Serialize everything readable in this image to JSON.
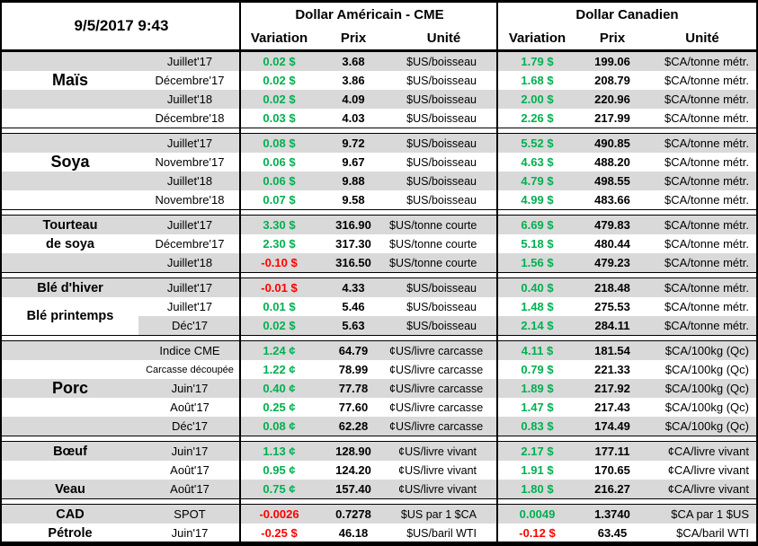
{
  "report": {
    "date": "9/5/2017 9:43",
    "us_group_title": "Dollar Américain - CME",
    "ca_group_title": "Dollar Canadien",
    "col_variation": "Variation",
    "col_price": "Prix",
    "col_unit": "Unité"
  },
  "colors": {
    "positive": "#00B050",
    "negative": "#FF0000",
    "band": "#D9D9D9",
    "border": "#000000"
  },
  "sections": [
    {
      "id": "mais",
      "rows": [
        {
          "category": "",
          "month": "Juillet'17",
          "band": true,
          "us": {
            "variation": "0.02 $",
            "direction": "up",
            "price": "3.68",
            "unit": "$US/boisseau"
          },
          "ca": {
            "variation": "1.79 $",
            "direction": "up",
            "price": "199.06",
            "unit": "$CA/tonne métr."
          }
        },
        {
          "category": "Maïs",
          "category_size": "big",
          "month": "Décembre'17",
          "band": false,
          "us": {
            "variation": "0.02 $",
            "direction": "up",
            "price": "3.86",
            "unit": "$US/boisseau"
          },
          "ca": {
            "variation": "1.68 $",
            "direction": "up",
            "price": "208.79",
            "unit": "$CA/tonne métr."
          }
        },
        {
          "category": "",
          "month": "Juillet'18",
          "band": true,
          "us": {
            "variation": "0.02 $",
            "direction": "up",
            "price": "4.09",
            "unit": "$US/boisseau"
          },
          "ca": {
            "variation": "2.00 $",
            "direction": "up",
            "price": "220.96",
            "unit": "$CA/tonne métr."
          }
        },
        {
          "category": "",
          "month": "Décembre'18",
          "band": false,
          "us": {
            "variation": "0.03 $",
            "direction": "up",
            "price": "4.03",
            "unit": "$US/boisseau"
          },
          "ca": {
            "variation": "2.26 $",
            "direction": "up",
            "price": "217.99",
            "unit": "$CA/tonne métr."
          }
        }
      ]
    },
    {
      "id": "soya",
      "rows": [
        {
          "category": "",
          "month": "Juillet'17",
          "band": true,
          "us": {
            "variation": "0.08 $",
            "direction": "up",
            "price": "9.72",
            "unit": "$US/boisseau"
          },
          "ca": {
            "variation": "5.52 $",
            "direction": "up",
            "price": "490.85",
            "unit": "$CA/tonne métr."
          }
        },
        {
          "category": "Soya",
          "category_size": "big",
          "month": "Novembre'17",
          "band": false,
          "us": {
            "variation": "0.06 $",
            "direction": "up",
            "price": "9.67",
            "unit": "$US/boisseau"
          },
          "ca": {
            "variation": "4.63 $",
            "direction": "up",
            "price": "488.20",
            "unit": "$CA/tonne métr."
          }
        },
        {
          "category": "",
          "month": "Juillet'18",
          "band": true,
          "us": {
            "variation": "0.06 $",
            "direction": "up",
            "price": "9.88",
            "unit": "$US/boisseau"
          },
          "ca": {
            "variation": "4.79 $",
            "direction": "up",
            "price": "498.55",
            "unit": "$CA/tonne métr."
          }
        },
        {
          "category": "",
          "month": "Novembre'18",
          "band": false,
          "us": {
            "variation": "0.07 $",
            "direction": "up",
            "price": "9.58",
            "unit": "$US/boisseau"
          },
          "ca": {
            "variation": "4.99 $",
            "direction": "up",
            "price": "483.66",
            "unit": "$CA/tonne métr."
          }
        }
      ]
    },
    {
      "id": "tourteau-de-soya",
      "rows": [
        {
          "category": "Tourteau",
          "month": "Juillet'17",
          "band": true,
          "us": {
            "variation": "3.30 $",
            "direction": "up",
            "price": "316.90",
            "unit": "$US/tonne courte"
          },
          "ca": {
            "variation": "6.69 $",
            "direction": "up",
            "price": "479.83",
            "unit": "$CA/tonne métr."
          }
        },
        {
          "category": "de soya",
          "month": "Décembre'17",
          "band": false,
          "us": {
            "variation": "2.30 $",
            "direction": "up",
            "price": "317.30",
            "unit": "$US/tonne courte"
          },
          "ca": {
            "variation": "5.18 $",
            "direction": "up",
            "price": "480.44",
            "unit": "$CA/tonne métr."
          }
        },
        {
          "category": "",
          "month": "Juillet'18",
          "band": true,
          "us": {
            "variation": "-0.10 $",
            "direction": "down",
            "price": "316.50",
            "unit": "$US/tonne courte"
          },
          "ca": {
            "variation": "1.56 $",
            "direction": "up",
            "price": "479.23",
            "unit": "$CA/tonne métr."
          }
        }
      ]
    },
    {
      "id": "ble",
      "rows": [
        {
          "category": "Blé d'hiver",
          "month": "Juillet'17",
          "band": true,
          "us": {
            "variation": "-0.01 $",
            "direction": "down",
            "price": "4.33",
            "unit": "$US/boisseau"
          },
          "ca": {
            "variation": "0.40 $",
            "direction": "up",
            "price": "218.48",
            "unit": "$CA/tonne métr."
          }
        },
        {
          "category": "Blé printemps",
          "category_offset": true,
          "month": "Juillet'17",
          "band": false,
          "us": {
            "variation": "0.01 $",
            "direction": "up",
            "price": "5.46",
            "unit": "$US/boisseau"
          },
          "ca": {
            "variation": "1.48 $",
            "direction": "up",
            "price": "275.53",
            "unit": "$CA/tonne métr."
          }
        },
        {
          "category": "",
          "category_white": true,
          "month": "Déc'17",
          "band": true,
          "us": {
            "variation": "0.02 $",
            "direction": "up",
            "price": "5.63",
            "unit": "$US/boisseau"
          },
          "ca": {
            "variation": "2.14 $",
            "direction": "up",
            "price": "284.11",
            "unit": "$CA/tonne métr."
          }
        }
      ]
    },
    {
      "id": "porc",
      "rows": [
        {
          "category": "",
          "month": "Indice CME",
          "band": true,
          "us": {
            "variation": "1.24 ¢",
            "direction": "up",
            "price": "64.79",
            "unit": "¢US/livre carcasse"
          },
          "ca": {
            "variation": "4.11 $",
            "direction": "up",
            "price": "181.54",
            "unit": "$CA/100kg (Qc)"
          }
        },
        {
          "category": "",
          "month": "Carcasse découpée",
          "month_small": true,
          "band": false,
          "us": {
            "variation": "1.22 ¢",
            "direction": "up",
            "price": "78.99",
            "unit": "¢US/livre carcasse"
          },
          "ca": {
            "variation": "0.79 $",
            "direction": "up",
            "price": "221.33",
            "unit": "$CA/100kg (Qc)"
          }
        },
        {
          "category": "Porc",
          "category_size": "big",
          "month": "Juin'17",
          "band": true,
          "us": {
            "variation": "0.40 ¢",
            "direction": "up",
            "price": "77.78",
            "unit": "¢US/livre carcasse"
          },
          "ca": {
            "variation": "1.89 $",
            "direction": "up",
            "price": "217.92",
            "unit": "$CA/100kg (Qc)"
          }
        },
        {
          "category": "",
          "month": "Août'17",
          "band": false,
          "us": {
            "variation": "0.25 ¢",
            "direction": "up",
            "price": "77.60",
            "unit": "¢US/livre carcasse"
          },
          "ca": {
            "variation": "1.47 $",
            "direction": "up",
            "price": "217.43",
            "unit": "$CA/100kg (Qc)"
          }
        },
        {
          "category": "",
          "month": "Déc'17",
          "band": true,
          "us": {
            "variation": "0.08 ¢",
            "direction": "up",
            "price": "62.28",
            "unit": "¢US/livre carcasse"
          },
          "ca": {
            "variation": "0.83 $",
            "direction": "up",
            "price": "174.49",
            "unit": "$CA/100kg (Qc)"
          }
        }
      ]
    },
    {
      "id": "boeuf-veau",
      "rows": [
        {
          "category": "Bœuf",
          "month": "Juin'17",
          "band": true,
          "us": {
            "variation": "1.13 ¢",
            "direction": "up",
            "price": "128.90",
            "unit": "¢US/livre vivant"
          },
          "ca": {
            "variation": "2.17 $",
            "direction": "up",
            "price": "177.11",
            "unit": "¢CA/livre vivant"
          }
        },
        {
          "category": "",
          "month": "Août'17",
          "band": false,
          "us": {
            "variation": "0.95 ¢",
            "direction": "up",
            "price": "124.20",
            "unit": "¢US/livre vivant"
          },
          "ca": {
            "variation": "1.91 $",
            "direction": "up",
            "price": "170.65",
            "unit": "¢CA/livre vivant"
          }
        },
        {
          "category": "Veau",
          "month": "Août'17",
          "band": true,
          "us": {
            "variation": "0.75 ¢",
            "direction": "up",
            "price": "157.40",
            "unit": "¢US/livre vivant"
          },
          "ca": {
            "variation": "1.80 $",
            "direction": "up",
            "price": "216.27",
            "unit": "¢CA/livre vivant"
          }
        }
      ]
    },
    {
      "id": "cad-petrole",
      "rows": [
        {
          "category": "CAD",
          "month": "SPOT",
          "band": true,
          "us": {
            "variation": "-0.0026",
            "direction": "down",
            "price": "0.7278",
            "unit": "$US par 1 $CA"
          },
          "ca": {
            "variation": "0.0049",
            "direction": "up",
            "price": "1.3740",
            "unit": "$CA par 1 $US"
          }
        },
        {
          "category": "Pétrole",
          "month": "Juin'17",
          "band": false,
          "us": {
            "variation": "-0.25 $",
            "direction": "down",
            "price": "46.18",
            "unit": "$US/baril WTI"
          },
          "ca": {
            "variation": "-0.12 $",
            "direction": "down",
            "price": "63.45",
            "unit": "$CA/baril WTI"
          }
        }
      ]
    }
  ]
}
